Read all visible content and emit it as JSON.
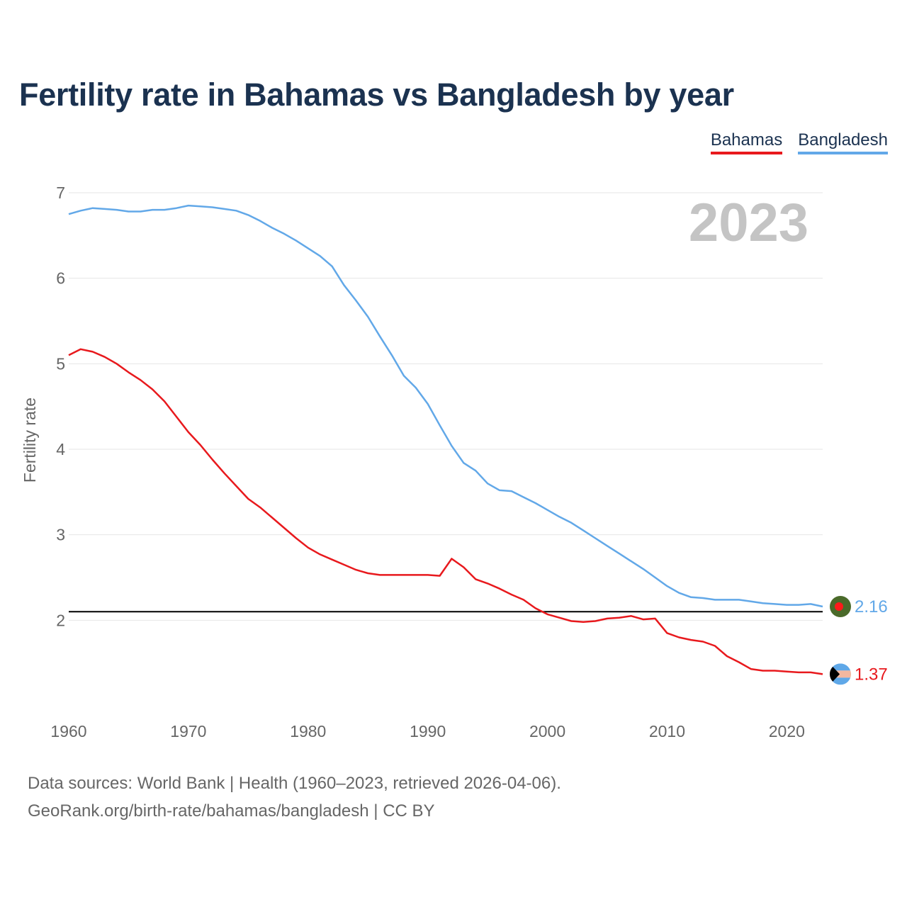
{
  "title": "Fertility rate in Bahamas vs Bangladesh by year",
  "legend": {
    "bahamas": "Bahamas",
    "bangladesh": "Bangladesh"
  },
  "year_label": "2023",
  "source": {
    "line1": "Data sources: World Bank | Health (1960–2023, retrieved 2026-04-06).",
    "line2": "GeoRank.org/birth-rate/bahamas/bangladesh | CC BY"
  },
  "colors": {
    "bahamas": "#e8191d",
    "bangladesh": "#62a8e8",
    "reference": "#000000",
    "year": "#c4c4c4"
  },
  "chart_data": {
    "type": "line",
    "title": "Fertility rate in Bahamas vs Bangladesh by year",
    "xlabel": "",
    "ylabel": "Fertility rate",
    "xlim": [
      1960,
      2023
    ],
    "ylim": [
      1.0,
      7.0
    ],
    "xticks": [
      1960,
      1970,
      1980,
      1990,
      2000,
      2010,
      2020
    ],
    "yticks": [
      2,
      3,
      4,
      5,
      6,
      7
    ],
    "grid": true,
    "reference_line": 2.1,
    "x": [
      1960,
      1961,
      1962,
      1963,
      1964,
      1965,
      1966,
      1967,
      1968,
      1969,
      1970,
      1971,
      1972,
      1973,
      1974,
      1975,
      1976,
      1977,
      1978,
      1979,
      1980,
      1981,
      1982,
      1983,
      1984,
      1985,
      1986,
      1987,
      1988,
      1989,
      1990,
      1991,
      1992,
      1993,
      1994,
      1995,
      1996,
      1997,
      1998,
      1999,
      2000,
      2001,
      2002,
      2003,
      2004,
      2005,
      2006,
      2007,
      2008,
      2009,
      2010,
      2011,
      2012,
      2013,
      2014,
      2015,
      2016,
      2017,
      2018,
      2019,
      2020,
      2021,
      2022,
      2023
    ],
    "series": [
      {
        "name": "Bahamas",
        "values": [
          5.1,
          5.17,
          5.14,
          5.08,
          5.0,
          4.9,
          4.81,
          4.7,
          4.56,
          4.38,
          4.2,
          4.05,
          3.88,
          3.72,
          3.57,
          3.42,
          3.32,
          3.2,
          3.08,
          2.96,
          2.85,
          2.77,
          2.71,
          2.65,
          2.59,
          2.55,
          2.53,
          2.53,
          2.53,
          2.53,
          2.53,
          2.52,
          2.72,
          2.62,
          2.48,
          2.43,
          2.37,
          2.3,
          2.24,
          2.14,
          2.07,
          2.03,
          1.99,
          1.98,
          1.99,
          2.02,
          2.03,
          2.05,
          2.01,
          2.02,
          1.85,
          1.8,
          1.77,
          1.75,
          1.7,
          1.58,
          1.51,
          1.43,
          1.41,
          1.41,
          1.4,
          1.39,
          1.39,
          1.37
        ],
        "end_label": "1.37"
      },
      {
        "name": "Bangladesh",
        "values": [
          6.75,
          6.79,
          6.82,
          6.81,
          6.8,
          6.78,
          6.78,
          6.8,
          6.8,
          6.82,
          6.85,
          6.84,
          6.83,
          6.81,
          6.79,
          6.74,
          6.67,
          6.59,
          6.52,
          6.44,
          6.35,
          6.26,
          6.14,
          5.92,
          5.74,
          5.55,
          5.32,
          5.1,
          4.86,
          4.72,
          4.53,
          4.28,
          4.04,
          3.84,
          3.75,
          3.6,
          3.52,
          3.51,
          3.44,
          3.37,
          3.29,
          3.21,
          3.14,
          3.05,
          2.96,
          2.87,
          2.78,
          2.69,
          2.6,
          2.5,
          2.4,
          2.32,
          2.27,
          2.26,
          2.24,
          2.24,
          2.24,
          2.22,
          2.2,
          2.19,
          2.18,
          2.18,
          2.19,
          2.16
        ],
        "end_label": "2.16"
      }
    ]
  }
}
